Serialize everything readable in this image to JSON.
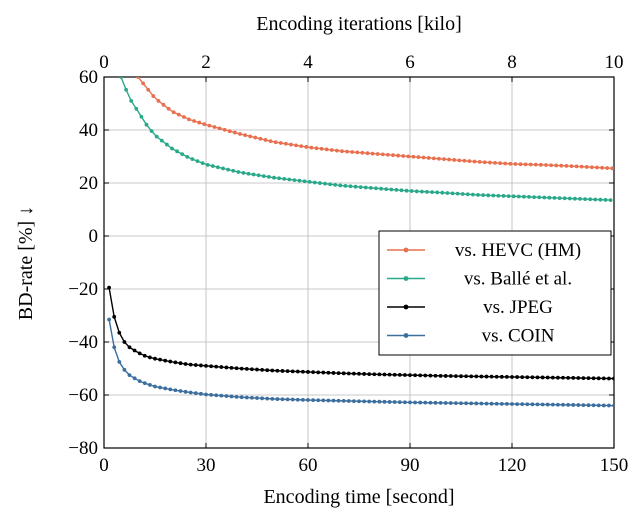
{
  "chart_data": {
    "type": "line",
    "title": "",
    "xlabel": "Encoding time [second]",
    "x2label": "Encoding iterations [kilo]",
    "ylabel": "BD-rate [%] ↓",
    "xlim": [
      0,
      150
    ],
    "x2lim": [
      0,
      10
    ],
    "ylim": [
      -80,
      60
    ],
    "xticks": [
      0,
      30,
      60,
      90,
      120,
      150
    ],
    "x2ticks": [
      0,
      2,
      4,
      6,
      8,
      10
    ],
    "yticks": [
      -80,
      -60,
      -40,
      -20,
      0,
      20,
      40,
      60
    ],
    "xtick_labels": [
      "0",
      "30",
      "60",
      "90",
      "120",
      "150"
    ],
    "x2tick_labels": [
      "0",
      "2",
      "4",
      "6",
      "8",
      "10"
    ],
    "ytick_labels": [
      "−80",
      "−60",
      "−40",
      "−20",
      "0",
      "20",
      "40",
      "60"
    ],
    "grid": true,
    "legend_position": "right",
    "series": [
      {
        "name": "vs. HEVC (HM)",
        "color": "#e8704f",
        "x": [
          10,
          15,
          20,
          25,
          30,
          40,
          50,
          60,
          70,
          80,
          90,
          100,
          110,
          120,
          130,
          140,
          150
        ],
        "y": [
          60,
          52,
          47,
          44,
          42,
          38.5,
          35.5,
          33.5,
          32,
          31,
          30,
          29,
          28,
          27.2,
          26.8,
          26.2,
          25.5
        ]
      },
      {
        "name": "vs. Ballé et al.",
        "color": "#2aa88a",
        "x": [
          5,
          7.5,
          10,
          12.5,
          15,
          20,
          25,
          30,
          40,
          50,
          60,
          70,
          80,
          90,
          100,
          110,
          120,
          130,
          140,
          150
        ],
        "y": [
          60,
          52,
          47,
          42,
          38,
          33,
          29.5,
          27,
          24,
          22,
          20.5,
          19,
          18,
          17,
          16.3,
          15.5,
          15,
          14.5,
          14,
          13.5
        ]
      },
      {
        "name": "vs. JPEG",
        "color": "#000000",
        "x": [
          1.5,
          3,
          4.5,
          6,
          7.5,
          10,
          12.5,
          15,
          20,
          25,
          30,
          40,
          50,
          60,
          70,
          80,
          90,
          100,
          110,
          120,
          130,
          140,
          150
        ],
        "y": [
          -19.5,
          -30.5,
          -36.5,
          -40,
          -42,
          -44,
          -45.5,
          -46.3,
          -47.5,
          -48.5,
          -49,
          -50,
          -50.8,
          -51.3,
          -51.8,
          -52.2,
          -52.5,
          -52.8,
          -53,
          -53.2,
          -53.4,
          -53.6,
          -53.8
        ]
      },
      {
        "name": "vs. COIN",
        "color": "#3c6e9e",
        "x": [
          1.5,
          3,
          4.5,
          6,
          7.5,
          10,
          12.5,
          15,
          20,
          25,
          30,
          40,
          50,
          60,
          70,
          80,
          90,
          100,
          110,
          120,
          130,
          140,
          150
        ],
        "y": [
          -31.5,
          -42,
          -47.5,
          -50.5,
          -52.5,
          -54.5,
          -55.8,
          -56.8,
          -58,
          -59,
          -59.8,
          -60.8,
          -61.5,
          -61.9,
          -62.2,
          -62.5,
          -62.8,
          -63,
          -63.2,
          -63.4,
          -63.6,
          -63.8,
          -64
        ]
      }
    ]
  }
}
